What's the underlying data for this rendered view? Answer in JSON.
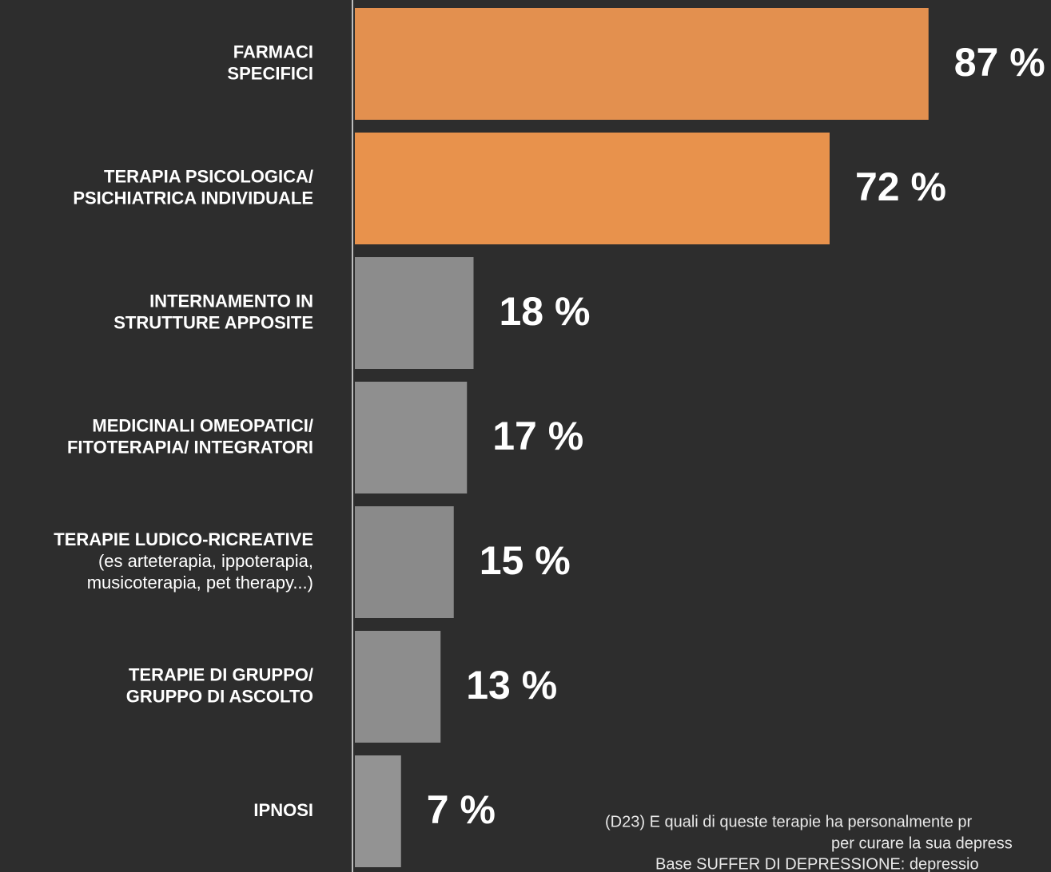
{
  "chart_data": {
    "type": "bar",
    "orientation": "horizontal",
    "categories": [
      [
        "FARMACI",
        "SPECIFICI"
      ],
      [
        "TERAPIA PSICOLOGICA/",
        "PSICHIATRICA INDIVIDUALE"
      ],
      [
        "INTERNAMENTO IN",
        "STRUTTURE APPOSITE"
      ],
      [
        "MEDICINALI OMEOPATICI/",
        "FITOTERAPIA/ INTEGRATORI"
      ],
      [
        "TERAPIE LUDICO-RICREATIVE",
        "(es arteterapia, ippoterapia,",
        "musicoterapia, pet therapy...)"
      ],
      [
        "TERAPIE DI GRUPPO/",
        "GRUPPO DI ASCOLTO"
      ],
      [
        "IPNOSI"
      ]
    ],
    "values": [
      87,
      72,
      18,
      17,
      15,
      13,
      7
    ],
    "value_labels": [
      "87 %",
      "72 %",
      "18 %",
      "17 %",
      "15 %",
      "13 %",
      "7 %"
    ],
    "colors": [
      "#e3904f",
      "#e8924c",
      "#8c8c8c",
      "#8f8f8f",
      "#8a8a8a",
      "#8d8d8d",
      "#939393"
    ],
    "xlim": [
      0,
      100
    ],
    "note": [
      "(D23) E quali di queste terapie ha personalmente pr",
      "per curare la sua depress",
      "Base SUFFER DI DEPRESSIONE: depressio"
    ]
  }
}
